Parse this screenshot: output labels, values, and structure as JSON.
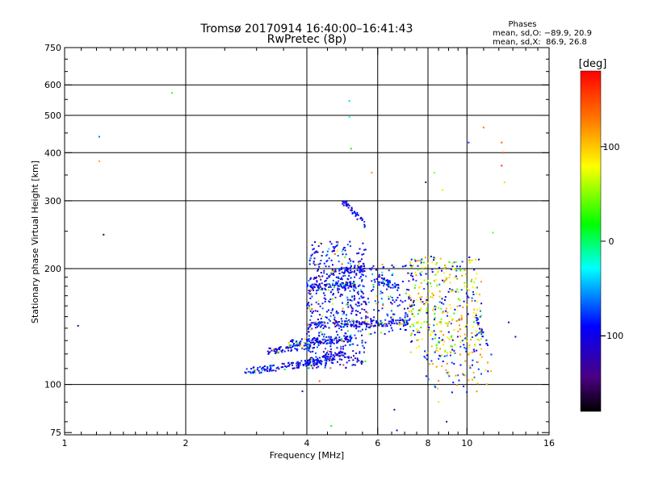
{
  "chart_data": {
    "type": "scatter",
    "title": "Tromsø 20170914 16:40:00–16:41:43",
    "subtitle": "RwPretec (8p)",
    "xlabel": "Frequency [MHz]",
    "ylabel": "Stationary phase Virtual Height [km]",
    "x_scale": "log",
    "y_scale": "log",
    "xlim": [
      1,
      16
    ],
    "ylim": [
      74,
      750
    ],
    "x_ticks": [
      1,
      2,
      4,
      6,
      8,
      10,
      16
    ],
    "y_ticks": [
      75,
      100,
      200,
      300,
      400,
      500,
      600,
      750
    ],
    "x_gridlines": [
      2,
      4,
      6,
      8,
      10
    ],
    "y_gridlines": [
      100,
      200,
      300,
      400,
      500,
      600
    ],
    "grid": true,
    "stats": {
      "title": "Phases",
      "line1": "mean, sd,O: −89.9, 20.9",
      "line2": "mean, sd,X:  86.9, 26.8"
    },
    "colorbar": {
      "label": "[deg]",
      "range": [
        -180,
        180
      ],
      "ticks": [
        100,
        0,
        -100
      ],
      "colormap": "rainbow"
    },
    "o_mode_traces": [
      {
        "f0": 2.8,
        "f1": 4.7,
        "h0": 108,
        "h1": 116
      },
      {
        "f0": 3.2,
        "f1": 4.1,
        "h0": 122,
        "h1": 126
      },
      {
        "f0": 3.6,
        "f1": 5.2,
        "h0": 128,
        "h1": 132
      },
      {
        "f0": 4.0,
        "f1": 7.2,
        "h0": 143,
        "h1": 145
      },
      {
        "f0": 4.0,
        "f1": 5.1,
        "h0": 115,
        "h1": 120
      },
      {
        "f0": 4.0,
        "f1": 5.3,
        "h0": 178,
        "h1": 182
      },
      {
        "f0": 4.6,
        "f1": 5.6,
        "h0": 195,
        "h1": 200
      },
      {
        "f0": 4.9,
        "f1": 5.6,
        "h0": 300,
        "h1": 260
      },
      {
        "f0": 6.0,
        "f1": 6.8,
        "h0": 188,
        "h1": 178
      },
      {
        "f0": 10.5,
        "f1": 11.3,
        "h0": 150,
        "h1": 125
      }
    ],
    "x_mode_cloud": {
      "f0": 7.2,
      "f1": 10.9,
      "h0": 120,
      "h1": 215
    },
    "isolated_points": [
      {
        "x": 1.08,
        "y": 142,
        "phase": -130
      },
      {
        "x": 1.22,
        "y": 440,
        "phase": -60
      },
      {
        "x": 1.22,
        "y": 380,
        "phase": 110
      },
      {
        "x": 1.25,
        "y": 245,
        "phase": -160
      },
      {
        "x": 1.85,
        "y": 572,
        "phase": 30
      },
      {
        "x": 5.1,
        "y": 545,
        "phase": -40
      },
      {
        "x": 5.1,
        "y": 495,
        "phase": -30
      },
      {
        "x": 5.15,
        "y": 410,
        "phase": 20
      },
      {
        "x": 5.8,
        "y": 355,
        "phase": 120
      },
      {
        "x": 7.9,
        "y": 335,
        "phase": -140
      },
      {
        "x": 8.3,
        "y": 355,
        "phase": 50
      },
      {
        "x": 8.7,
        "y": 320,
        "phase": 90
      },
      {
        "x": 10.1,
        "y": 425,
        "phase": -80
      },
      {
        "x": 11.0,
        "y": 465,
        "phase": 130
      },
      {
        "x": 12.2,
        "y": 425,
        "phase": 140
      },
      {
        "x": 12.3,
        "y": 400,
        "phase": 150
      },
      {
        "x": 12.2,
        "y": 370,
        "phase": 160
      },
      {
        "x": 12.4,
        "y": 335,
        "phase": 60
      },
      {
        "x": 11.6,
        "y": 248,
        "phase": 40
      },
      {
        "x": 12.7,
        "y": 145,
        "phase": -120
      },
      {
        "x": 13.2,
        "y": 133,
        "phase": -110
      },
      {
        "x": 4.6,
        "y": 78,
        "phase": 20
      },
      {
        "x": 6.6,
        "y": 86,
        "phase": -120
      },
      {
        "x": 6.7,
        "y": 76,
        "phase": -100
      },
      {
        "x": 8.5,
        "y": 90,
        "phase": 60
      },
      {
        "x": 8.9,
        "y": 80,
        "phase": -140
      },
      {
        "x": 3.9,
        "y": 96,
        "phase": -110
      },
      {
        "x": 4.3,
        "y": 102,
        "phase": 140
      }
    ]
  }
}
